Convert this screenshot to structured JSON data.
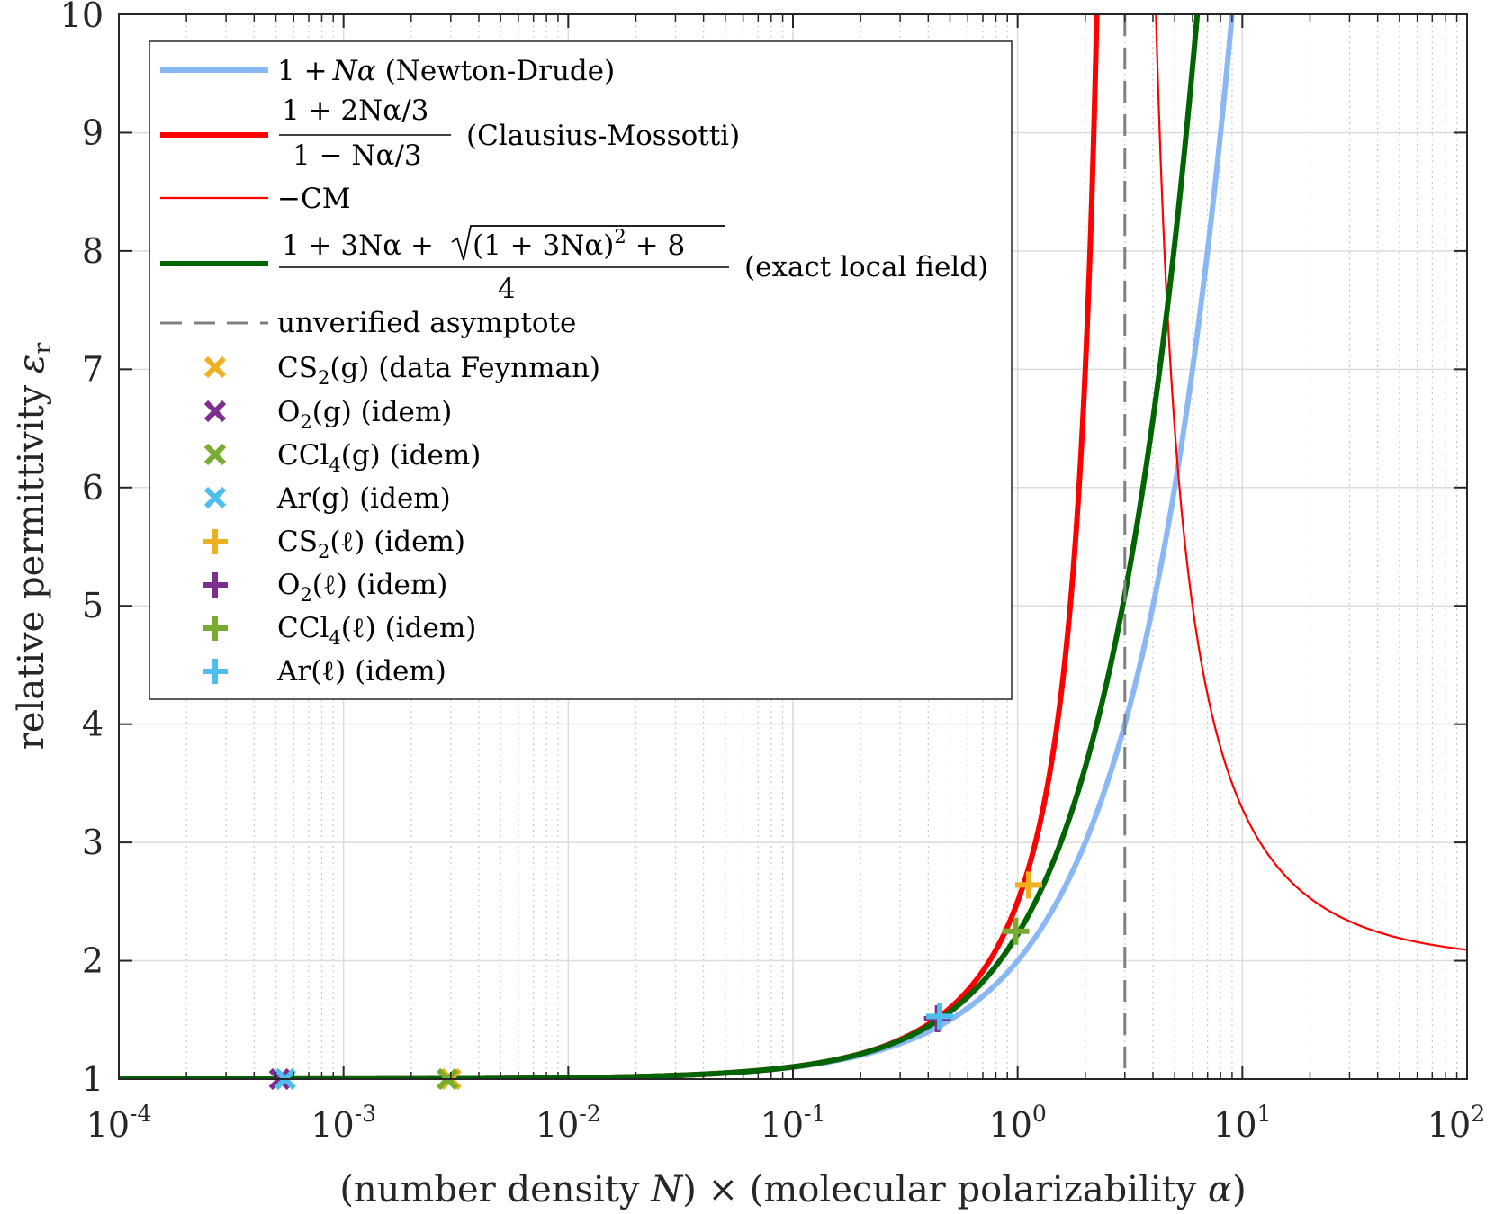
{
  "chart_data": {
    "type": "line",
    "xscale": "log",
    "xlim": [
      0.0001,
      100
    ],
    "ylim": [
      1,
      10
    ],
    "grid": true,
    "xlabel": "(number density N) × (molecular polarizability α)",
    "ylabel": "relative permittivity εr",
    "x_ticks": [
      {
        "value": 0.0001,
        "base": "10",
        "exp": "-4"
      },
      {
        "value": 0.001,
        "base": "10",
        "exp": "-3"
      },
      {
        "value": 0.01,
        "base": "10",
        "exp": "-2"
      },
      {
        "value": 0.1,
        "base": "10",
        "exp": "-1"
      },
      {
        "value": 1,
        "base": "10",
        "exp": "0"
      },
      {
        "value": 10,
        "base": "10",
        "exp": "1"
      },
      {
        "value": 100,
        "base": "10",
        "exp": "2"
      }
    ],
    "y_ticks": [
      1,
      2,
      3,
      4,
      5,
      6,
      7,
      8,
      9,
      10
    ],
    "series": [
      {
        "name": "1 + Nα (Newton-Drude)",
        "model": "newton_drude",
        "color": "#8ab8f5",
        "width": 6
      },
      {
        "name": "(1 + 2Nα/3)/(1 − Nα/3) (Clausius-Mossotti)",
        "model": "clausius_mossotti",
        "color": "#ff0000",
        "width": 6
      },
      {
        "name": "−CM",
        "model": "minus_cm",
        "color": "#ff0000",
        "width": 2.2
      },
      {
        "name": "(1 + 3Nα + √((1 + 3Nα)² + 8))/4 (exact local field)",
        "model": "exact_local_field",
        "color": "#006400",
        "width": 6
      }
    ],
    "asymptote": {
      "x": 3,
      "label": "unverified asymptote",
      "color": "#808080"
    },
    "points": [
      {
        "name": "CS2(g) (data Feynman)",
        "marker": "x",
        "color": "#EDB120",
        "x": 0.003,
        "y": 1.0
      },
      {
        "name": "O2(g) (idem)",
        "marker": "x",
        "color": "#7E2F8E",
        "x": 0.00052,
        "y": 1.0
      },
      {
        "name": "CCl4(g) (idem)",
        "marker": "x",
        "color": "#77AC30",
        "x": 0.0029,
        "y": 1.0
      },
      {
        "name": "Ar(g) (idem)",
        "marker": "x",
        "color": "#4DBEEE",
        "x": 0.00055,
        "y": 1.0
      },
      {
        "name": "CS2(ℓ) (idem)",
        "marker": "+",
        "color": "#EDB120",
        "x": 1.12,
        "y": 2.64
      },
      {
        "name": "O2(ℓ) (idem)",
        "marker": "+",
        "color": "#7E2F8E",
        "x": 0.44,
        "y": 1.51
      },
      {
        "name": "CCl4(ℓ) (idem)",
        "marker": "+",
        "color": "#77AC30",
        "x": 0.98,
        "y": 2.25
      },
      {
        "name": "Ar(ℓ) (idem)",
        "marker": "+",
        "color": "#4DBEEE",
        "x": 0.45,
        "y": 1.53
      }
    ]
  },
  "legend": {
    "nd_one": "1 +",
    "nd_var": "Nα",
    "nd_desc": "(Newton-Drude)",
    "cm_num": "1 + 2Nα/3",
    "cm_den": "1 − Nα/3",
    "cm_desc": "(Clausius-Mossotti)",
    "mcm": "−CM",
    "ex_num": "1 + 3Nα +",
    "ex_rad": "(1 + 3Nα)",
    "ex_sq": "2",
    "ex_rest": " + 8",
    "ex_den": "4",
    "ex_desc": "(exact local field)",
    "asym": "unverified asymptote",
    "cs2g_a": "CS",
    "cs2g_s": "2",
    "cs2g_b": "(g) (data Feynman)",
    "o2g_a": "O",
    "o2g_s": "2",
    "o2g_b": "(g) (idem)",
    "ccl4g_a": "CCl",
    "ccl4g_s": "4",
    "ccl4g_b": "(g) (idem)",
    "arg": "Ar(g) (idem)",
    "cs2l_a": "CS",
    "cs2l_s": "2",
    "cs2l_b": "(ℓ) (idem)",
    "o2l_a": "O",
    "o2l_s": "2",
    "o2l_b": "(ℓ) (idem)",
    "ccl4l_a": "CCl",
    "ccl4l_s": "4",
    "ccl4l_b": "(ℓ) (idem)",
    "arl": "Ar(ℓ) (idem)"
  },
  "labels": {
    "x_a": "(number density ",
    "x_N": "N",
    "x_b": ") × (molecular polarizability ",
    "x_alpha": "α",
    "x_c": ")",
    "y_a": "relative permittivity ",
    "y_eps": "ε",
    "y_sub": "r"
  }
}
